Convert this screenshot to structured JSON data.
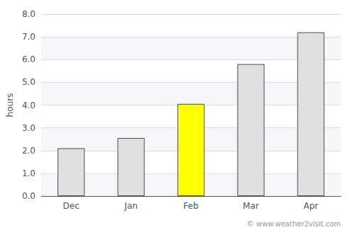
{
  "chart_data": {
    "type": "bar",
    "ylabel": "hours",
    "categories": [
      "Dec",
      "Jan",
      "Feb",
      "Mar",
      "Apr"
    ],
    "values": [
      2.1,
      2.55,
      4.05,
      5.8,
      7.2
    ],
    "colors": [
      "#e0e0e0",
      "#e0e0e0",
      "#ffff00",
      "#e0e0e0",
      "#e0e0e0"
    ],
    "ylim": [
      0,
      8.0
    ],
    "yticks": [
      {
        "value": 0.0,
        "label": "0.0"
      },
      {
        "value": 1.0,
        "label": "1.0"
      },
      {
        "value": 2.0,
        "label": "2.0"
      },
      {
        "value": 3.0,
        "label": "3.0"
      },
      {
        "value": 4.0,
        "label": "4.0"
      },
      {
        "value": 5.0,
        "label": "5.0"
      },
      {
        "value": 6.0,
        "label": "6.0"
      },
      {
        "value": 7.0,
        "label": "7.0"
      },
      {
        "value": 8.0,
        "label": "8.0"
      }
    ],
    "grid": true,
    "annotations": [
      "© www.weather2visit.com"
    ]
  }
}
